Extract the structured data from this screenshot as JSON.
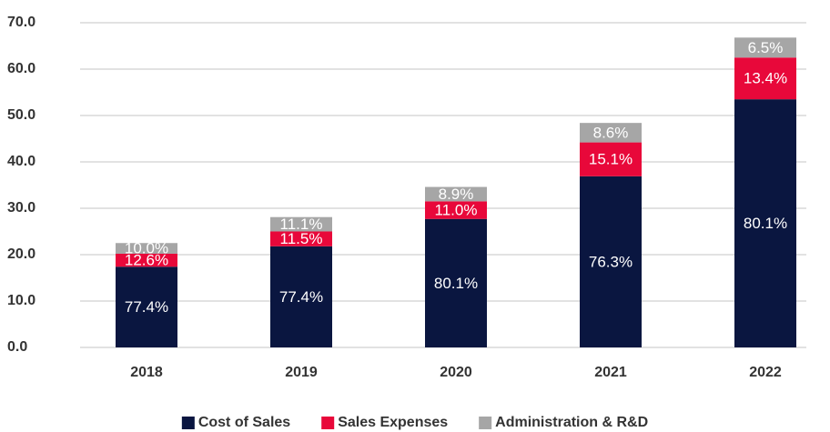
{
  "chart_data": {
    "type": "stacked_bar",
    "categories": [
      "2018",
      "2019",
      "2020",
      "2021",
      "2022"
    ],
    "series": [
      {
        "name": "Cost of Sales",
        "color": "#0a1640",
        "values": [
          17.4,
          21.8,
          27.7,
          36.9,
          53.5
        ],
        "labels": [
          "77.4%",
          "77.4%",
          "80.1%",
          "76.3%",
          "80.1%"
        ]
      },
      {
        "name": "Sales Expenses",
        "color": "#e8083a",
        "values": [
          2.8,
          3.2,
          3.8,
          7.3,
          9.0
        ],
        "labels": [
          "12.6%",
          "11.5%",
          "11.0%",
          "15.1%",
          "13.4%"
        ]
      },
      {
        "name": "Administration & R&D",
        "color": "#a6a6a6",
        "values": [
          2.3,
          3.1,
          3.1,
          4.2,
          4.3
        ],
        "labels": [
          "10.0%",
          "11.1%",
          "8.9%",
          "8.6%",
          "6.5%"
        ]
      }
    ],
    "ylim": [
      0,
      70
    ],
    "yticks": [
      {
        "value": 0,
        "label": "0.0"
      },
      {
        "value": 10,
        "label": "10.0"
      },
      {
        "value": 20,
        "label": "20.0"
      },
      {
        "value": 30,
        "label": "30.0"
      },
      {
        "value": 40,
        "label": "40.0"
      },
      {
        "value": 50,
        "label": "50.0"
      },
      {
        "value": 60,
        "label": "60.0"
      },
      {
        "value": 70,
        "label": "70.0"
      }
    ],
    "grid": true,
    "legend": "bottom"
  }
}
